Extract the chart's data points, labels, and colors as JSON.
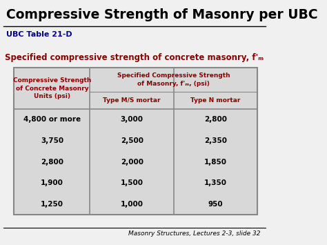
{
  "title": "Compressive Strength of Masonry per UBC",
  "subtitle": "UBC Table 21-D",
  "table_caption": "Specified compressive strength of concrete masonry, f'ₘ",
  "header_col1": "Compressive Strength\nof Concrete Masonry\nUnits (psi)",
  "header_col2_top": "Specified Compressive Strength\nof Masonry, f'ₘ, (psi)",
  "header_col2a": "Type M/S mortar",
  "header_col2b": "Type N mortar",
  "col1": [
    "4,800 or more",
    "3,750",
    "2,800",
    "1,900",
    "1,250"
  ],
  "col2a": [
    "3,000",
    "2,500",
    "2,000",
    "1,500",
    "1,000"
  ],
  "col2b": [
    "2,800",
    "2,350",
    "1,850",
    "1,350",
    "950"
  ],
  "footer": "Masonry Structures, Lectures 2-3, slide 32",
  "bg_color": "#f0f0f0",
  "title_color": "#000000",
  "subtitle_color": "#00008B",
  "caption_color": "#8B0000",
  "header_text_color": "#8B0000",
  "data_color": "#000000",
  "table_bg": "#d8d8d8",
  "line_color": "#888888"
}
